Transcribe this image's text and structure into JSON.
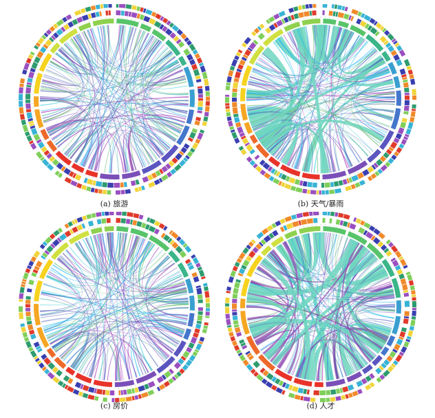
{
  "panels": [
    {
      "id": "a",
      "caption": "(a) 旅游",
      "dominant": "mixed"
    },
    {
      "id": "b",
      "caption": "(b) 天气/暴雨",
      "dominant": "teal"
    },
    {
      "id": "c",
      "caption": "(c) 房价",
      "dominant": "mixed"
    },
    {
      "id": "d",
      "caption": "(d) 人才",
      "dominant": "teal-purple"
    }
  ],
  "colors": {
    "segments": [
      "#e8332a",
      "#ee6a2a",
      "#f5a623",
      "#f7d21e",
      "#cfe040",
      "#8fd14f",
      "#58c46a",
      "#3bb58a",
      "#3a9fd0",
      "#4477cc",
      "#5b55c0",
      "#7a4fb8"
    ],
    "ribbons": [
      "#3f51b5",
      "#5c6bc0",
      "#7e57c2",
      "#26c6da",
      "#4db6ac",
      "#66bb6a",
      "#29b6f6",
      "#9c27b0"
    ],
    "teal": "#6fd6c0",
    "outer_ring": [
      "#3a3fb0",
      "#38b3d6",
      "#7fcf5a",
      "#f0d43a",
      "#f08a2a",
      "#e03a2a",
      "#9a4fc0",
      "#2e9c6e"
    ]
  }
}
